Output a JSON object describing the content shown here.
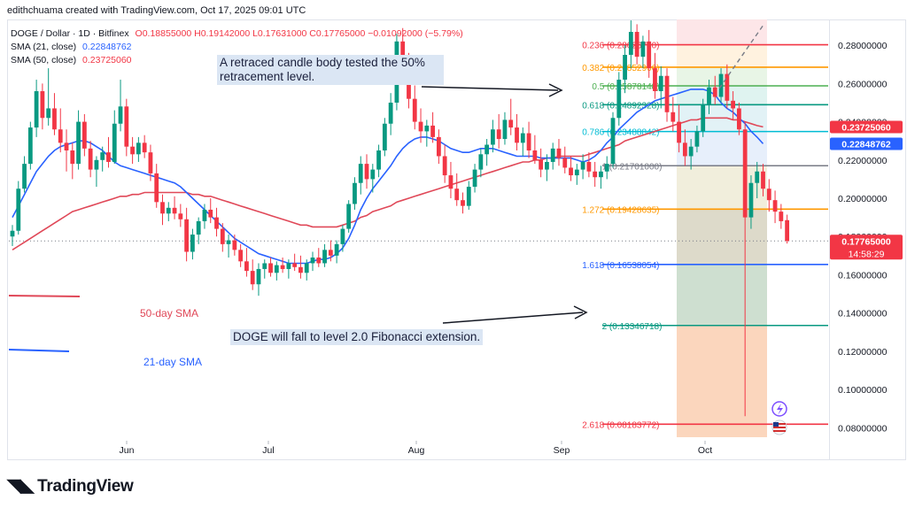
{
  "header": {
    "title": "edithchuama created with TradingView.com, Oct 17, 2025 09:01 UTC"
  },
  "legend": {
    "symbol": "DOGE / Dollar · 1D · Bitfinex",
    "ohlc": "O0.18855000 H0.19142000 L0.17631000 C0.17765000 −0.01092000 (−5.79%)",
    "sma21_label": "SMA (21, close)",
    "sma21_value": "0.22848762",
    "sma50_label": "SMA (50, close)",
    "sma50_value": "0.23725060"
  },
  "annotations": {
    "retrace_line1": "A retraced candle body tested the 50%",
    "retrace_line2": "retracement level.",
    "forecast": "DOGE   will fall to level 2.0 Fibonacci extension.",
    "sma50_label": "50-day SMA",
    "sma21_label": "21-day SMA"
  },
  "branding": {
    "logo": "TradingView"
  },
  "colors": {
    "up": "#089981",
    "down": "#f23645",
    "sma21": "#2962ff",
    "sma50": "#e04858",
    "annotation_bg": "#dbe6f4"
  },
  "chart_data": {
    "type": "candlestick",
    "symbol": "DOGE / Dollar",
    "interval": "1D",
    "ylim": [
      0.063,
      0.2935
    ],
    "y_ticks": [
      "0.28000000",
      "0.26000000",
      "0.24000000",
      "0.22000000",
      "0.20000000",
      "0.18000000",
      "0.16000000",
      "0.14000000",
      "0.12000000",
      "0.10000000",
      "0.08000000"
    ],
    "x_ticks": [
      "Jun",
      "Jul",
      "Aug",
      "Sep",
      "Oct"
    ],
    "last_price": "0.17765000",
    "countdown": "14:58:29",
    "sma21_tag": "0.22848762",
    "sma50_tag": "0.23725060",
    "fib_levels": [
      {
        "ratio": "0.236",
        "value": "0.28026710",
        "color": "#f23645"
      },
      {
        "ratio": "0.382",
        "value": "0.26852966",
        "color": "#ff9800"
      },
      {
        "ratio": "0.5",
        "value": "0.25878148",
        "color": "#4caf50"
      },
      {
        "ratio": "0.618",
        "value": "0.24892328",
        "color": "#089981"
      },
      {
        "ratio": "0.786",
        "value": "0.23488842",
        "color": "#00bcd4"
      },
      {
        "ratio": "1",
        "value": "0.21701000",
        "color": "#787b86"
      },
      {
        "ratio": "1.272",
        "value": "0.19428635",
        "color": "#ff9800"
      },
      {
        "ratio": "1.618",
        "value": "0.16538054",
        "color": "#2962ff"
      },
      {
        "ratio": "2",
        "value": "0.13346718",
        "color": "#089981"
      },
      {
        "ratio": "2.618",
        "value": "0.08183772",
        "color": "#f23645"
      }
    ],
    "candles": [
      [
        0.18,
        0.186,
        0.175,
        0.183
      ],
      [
        0.183,
        0.209,
        0.181,
        0.205
      ],
      [
        0.205,
        0.222,
        0.203,
        0.218
      ],
      [
        0.218,
        0.24,
        0.215,
        0.237
      ],
      [
        0.237,
        0.262,
        0.232,
        0.256
      ],
      [
        0.256,
        0.26,
        0.236,
        0.242
      ],
      [
        0.242,
        0.268,
        0.238,
        0.247
      ],
      [
        0.247,
        0.255,
        0.233,
        0.236
      ],
      [
        0.236,
        0.247,
        0.224,
        0.229
      ],
      [
        0.229,
        0.236,
        0.214,
        0.225
      ],
      [
        0.225,
        0.229,
        0.21,
        0.218
      ],
      [
        0.218,
        0.246,
        0.215,
        0.24
      ],
      [
        0.24,
        0.244,
        0.222,
        0.226
      ],
      [
        0.226,
        0.23,
        0.211,
        0.215
      ],
      [
        0.215,
        0.222,
        0.206,
        0.22
      ],
      [
        0.22,
        0.227,
        0.214,
        0.224
      ],
      [
        0.224,
        0.232,
        0.216,
        0.219
      ],
      [
        0.219,
        0.246,
        0.218,
        0.239
      ],
      [
        0.239,
        0.262,
        0.235,
        0.248
      ],
      [
        0.248,
        0.252,
        0.222,
        0.227
      ],
      [
        0.227,
        0.232,
        0.218,
        0.223
      ],
      [
        0.223,
        0.232,
        0.219,
        0.229
      ],
      [
        0.229,
        0.233,
        0.221,
        0.224
      ],
      [
        0.224,
        0.228,
        0.209,
        0.213
      ],
      [
        0.213,
        0.218,
        0.195,
        0.198
      ],
      [
        0.198,
        0.202,
        0.186,
        0.192
      ],
      [
        0.192,
        0.198,
        0.188,
        0.195
      ],
      [
        0.195,
        0.201,
        0.189,
        0.192
      ],
      [
        0.192,
        0.197,
        0.185,
        0.189
      ],
      [
        0.189,
        0.195,
        0.167,
        0.172
      ],
      [
        0.172,
        0.184,
        0.168,
        0.181
      ],
      [
        0.181,
        0.19,
        0.176,
        0.188
      ],
      [
        0.188,
        0.197,
        0.184,
        0.194
      ],
      [
        0.194,
        0.2,
        0.187,
        0.19
      ],
      [
        0.19,
        0.195,
        0.18,
        0.184
      ],
      [
        0.184,
        0.187,
        0.172,
        0.176
      ],
      [
        0.176,
        0.181,
        0.169,
        0.178
      ],
      [
        0.178,
        0.181,
        0.17,
        0.173
      ],
      [
        0.173,
        0.176,
        0.164,
        0.167
      ],
      [
        0.167,
        0.174,
        0.159,
        0.162
      ],
      [
        0.162,
        0.168,
        0.152,
        0.155
      ],
      [
        0.155,
        0.166,
        0.149,
        0.163
      ],
      [
        0.163,
        0.168,
        0.158,
        0.166
      ],
      [
        0.166,
        0.169,
        0.159,
        0.161
      ],
      [
        0.161,
        0.167,
        0.157,
        0.165
      ],
      [
        0.165,
        0.169,
        0.161,
        0.163
      ],
      [
        0.163,
        0.168,
        0.158,
        0.166
      ],
      [
        0.166,
        0.171,
        0.162,
        0.164
      ],
      [
        0.164,
        0.17,
        0.158,
        0.161
      ],
      [
        0.161,
        0.168,
        0.157,
        0.166
      ],
      [
        0.166,
        0.172,
        0.162,
        0.169
      ],
      [
        0.169,
        0.174,
        0.164,
        0.166
      ],
      [
        0.166,
        0.176,
        0.164,
        0.173
      ],
      [
        0.173,
        0.178,
        0.167,
        0.17
      ],
      [
        0.17,
        0.178,
        0.166,
        0.176
      ],
      [
        0.176,
        0.186,
        0.172,
        0.184
      ],
      [
        0.184,
        0.199,
        0.182,
        0.197
      ],
      [
        0.197,
        0.211,
        0.194,
        0.208
      ],
      [
        0.208,
        0.222,
        0.202,
        0.218
      ],
      [
        0.218,
        0.223,
        0.205,
        0.21
      ],
      [
        0.21,
        0.218,
        0.203,
        0.215
      ],
      [
        0.215,
        0.228,
        0.211,
        0.225
      ],
      [
        0.225,
        0.242,
        0.222,
        0.239
      ],
      [
        0.239,
        0.255,
        0.233,
        0.25
      ],
      [
        0.25,
        0.286,
        0.246,
        0.282
      ],
      [
        0.282,
        0.289,
        0.263,
        0.268
      ],
      [
        0.268,
        0.276,
        0.247,
        0.252
      ],
      [
        0.252,
        0.259,
        0.236,
        0.24
      ],
      [
        0.24,
        0.247,
        0.229,
        0.235
      ],
      [
        0.235,
        0.241,
        0.227,
        0.238
      ],
      [
        0.238,
        0.245,
        0.229,
        0.232
      ],
      [
        0.232,
        0.236,
        0.218,
        0.222
      ],
      [
        0.222,
        0.228,
        0.208,
        0.212
      ],
      [
        0.212,
        0.219,
        0.2,
        0.205
      ],
      [
        0.205,
        0.213,
        0.196,
        0.199
      ],
      [
        0.199,
        0.203,
        0.192,
        0.196
      ],
      [
        0.196,
        0.209,
        0.194,
        0.206
      ],
      [
        0.206,
        0.218,
        0.203,
        0.215
      ],
      [
        0.215,
        0.226,
        0.211,
        0.223
      ],
      [
        0.223,
        0.231,
        0.217,
        0.228
      ],
      [
        0.228,
        0.241,
        0.224,
        0.236
      ],
      [
        0.236,
        0.244,
        0.226,
        0.231
      ],
      [
        0.231,
        0.245,
        0.228,
        0.241
      ],
      [
        0.241,
        0.252,
        0.233,
        0.237
      ],
      [
        0.237,
        0.244,
        0.225,
        0.229
      ],
      [
        0.229,
        0.237,
        0.222,
        0.234
      ],
      [
        0.234,
        0.24,
        0.221,
        0.225
      ],
      [
        0.225,
        0.233,
        0.218,
        0.22
      ],
      [
        0.22,
        0.226,
        0.211,
        0.215
      ],
      [
        0.215,
        0.223,
        0.209,
        0.219
      ],
      [
        0.219,
        0.229,
        0.215,
        0.226
      ],
      [
        0.226,
        0.231,
        0.217,
        0.221
      ],
      [
        0.221,
        0.227,
        0.213,
        0.216
      ],
      [
        0.216,
        0.222,
        0.209,
        0.212
      ],
      [
        0.212,
        0.218,
        0.207,
        0.215
      ],
      [
        0.215,
        0.223,
        0.21,
        0.219
      ],
      [
        0.219,
        0.224,
        0.211,
        0.214
      ],
      [
        0.214,
        0.219,
        0.206,
        0.211
      ],
      [
        0.211,
        0.217,
        0.205,
        0.214
      ],
      [
        0.214,
        0.222,
        0.21,
        0.218
      ],
      [
        0.218,
        0.245,
        0.216,
        0.242
      ],
      [
        0.242,
        0.266,
        0.238,
        0.262
      ],
      [
        0.262,
        0.28,
        0.255,
        0.275
      ],
      [
        0.275,
        0.293,
        0.268,
        0.287
      ],
      [
        0.287,
        0.291,
        0.27,
        0.274
      ],
      [
        0.274,
        0.285,
        0.268,
        0.282
      ],
      [
        0.282,
        0.288,
        0.263,
        0.268
      ],
      [
        0.268,
        0.276,
        0.252,
        0.256
      ],
      [
        0.256,
        0.269,
        0.247,
        0.264
      ],
      [
        0.264,
        0.268,
        0.24,
        0.245
      ],
      [
        0.245,
        0.253,
        0.235,
        0.24
      ],
      [
        0.24,
        0.249,
        0.224,
        0.229
      ],
      [
        0.229,
        0.236,
        0.217,
        0.222
      ],
      [
        0.222,
        0.231,
        0.215,
        0.227
      ],
      [
        0.227,
        0.238,
        0.224,
        0.235
      ],
      [
        0.235,
        0.252,
        0.232,
        0.249
      ],
      [
        0.249,
        0.262,
        0.244,
        0.258
      ],
      [
        0.258,
        0.264,
        0.249,
        0.253
      ],
      [
        0.253,
        0.268,
        0.25,
        0.265
      ],
      [
        0.265,
        0.27,
        0.247,
        0.251
      ],
      [
        0.251,
        0.256,
        0.241,
        0.247
      ],
      [
        0.247,
        0.25,
        0.233,
        0.236
      ],
      [
        0.236,
        0.24,
        0.086,
        0.19
      ],
      [
        0.19,
        0.212,
        0.184,
        0.208
      ],
      [
        0.208,
        0.219,
        0.2,
        0.214
      ],
      [
        0.214,
        0.218,
        0.201,
        0.205
      ],
      [
        0.205,
        0.21,
        0.193,
        0.199
      ],
      [
        0.199,
        0.204,
        0.187,
        0.193
      ],
      [
        0.193,
        0.197,
        0.184,
        0.188
      ],
      [
        0.18855,
        0.19142,
        0.17631,
        0.17765
      ]
    ],
    "sma21": [
      0.19,
      0.196,
      0.202,
      0.208,
      0.214,
      0.218,
      0.222,
      0.225,
      0.227,
      0.228,
      0.229,
      0.23,
      0.23,
      0.229,
      0.227,
      0.225,
      0.222,
      0.219,
      0.217,
      0.216,
      0.215,
      0.214,
      0.213,
      0.212,
      0.211,
      0.21,
      0.209,
      0.208,
      0.206,
      0.203,
      0.2,
      0.197,
      0.194,
      0.191,
      0.188,
      0.185,
      0.182,
      0.179,
      0.177,
      0.175,
      0.173,
      0.171,
      0.17,
      0.169,
      0.168,
      0.167,
      0.166,
      0.166,
      0.166,
      0.166,
      0.167,
      0.168,
      0.168,
      0.169,
      0.171,
      0.174,
      0.179,
      0.186,
      0.194,
      0.2,
      0.205,
      0.209,
      0.213,
      0.217,
      0.222,
      0.226,
      0.229,
      0.231,
      0.232,
      0.232,
      0.231,
      0.23,
      0.228,
      0.226,
      0.225,
      0.224,
      0.224,
      0.225,
      0.226,
      0.226,
      0.226,
      0.225,
      0.224,
      0.223,
      0.222,
      0.222,
      0.222,
      0.222,
      0.221,
      0.221,
      0.221,
      0.221,
      0.221,
      0.221,
      0.22,
      0.219,
      0.22,
      0.222,
      0.225,
      0.229,
      0.232,
      0.236,
      0.239,
      0.242,
      0.245,
      0.247,
      0.249,
      0.251,
      0.252,
      0.253,
      0.254,
      0.255,
      0.256,
      0.257,
      0.257,
      0.257,
      0.256,
      0.254,
      0.25,
      0.247,
      0.245,
      0.242,
      0.239,
      0.235,
      0.232,
      0.2285
    ],
    "sma50": [
      0.173,
      0.175,
      0.177,
      0.179,
      0.181,
      0.183,
      0.185,
      0.187,
      0.189,
      0.191,
      0.193,
      0.194,
      0.195,
      0.196,
      0.197,
      0.198,
      0.199,
      0.2,
      0.201,
      0.201,
      0.202,
      0.202,
      0.203,
      0.203,
      0.203,
      0.203,
      0.203,
      0.203,
      0.203,
      0.203,
      0.202,
      0.202,
      0.201,
      0.201,
      0.2,
      0.199,
      0.198,
      0.197,
      0.196,
      0.195,
      0.194,
      0.193,
      0.192,
      0.191,
      0.19,
      0.189,
      0.188,
      0.187,
      0.186,
      0.186,
      0.185,
      0.185,
      0.185,
      0.185,
      0.185,
      0.186,
      0.187,
      0.188,
      0.19,
      0.191,
      0.193,
      0.194,
      0.195,
      0.196,
      0.198,
      0.199,
      0.2,
      0.201,
      0.202,
      0.203,
      0.204,
      0.205,
      0.206,
      0.207,
      0.208,
      0.209,
      0.21,
      0.211,
      0.212,
      0.213,
      0.214,
      0.215,
      0.216,
      0.217,
      0.218,
      0.219,
      0.219,
      0.22,
      0.22,
      0.221,
      0.221,
      0.222,
      0.222,
      0.222,
      0.222,
      0.222,
      0.223,
      0.224,
      0.225,
      0.226,
      0.227,
      0.228,
      0.23,
      0.231,
      0.232,
      0.233,
      0.234,
      0.235,
      0.236,
      0.237,
      0.238,
      0.239,
      0.24,
      0.241,
      0.241,
      0.242,
      0.242,
      0.242,
      0.242,
      0.242,
      0.241,
      0.241,
      0.24,
      0.239,
      0.238,
      0.2373
    ]
  }
}
